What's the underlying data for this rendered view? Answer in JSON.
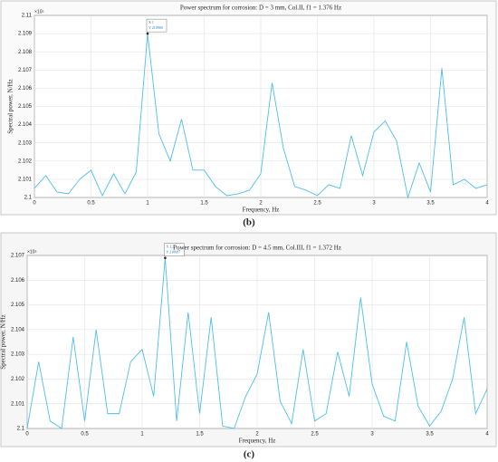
{
  "chart_data": [
    {
      "type": "line",
      "title": "Power spectrum for corrosion: D = 3 mm, Col.II, f1 = 1.376 Hz",
      "x_label": "Frequency, Hz",
      "y_label": "Spectral power, N/Hz",
      "y_exponent": "×10⁵",
      "caption": "(b)",
      "tip": [
        "X 1",
        "Y 210900"
      ],
      "x": [
        0,
        0.1,
        0.2,
        0.3,
        0.4,
        0.5,
        0.6,
        0.7,
        0.8,
        0.9,
        1,
        1.1,
        1.2,
        1.3,
        1.4,
        1.5,
        1.6,
        1.7,
        1.8,
        1.9,
        2,
        2.1,
        2.2,
        2.3,
        2.4,
        2.5,
        2.6,
        2.7,
        2.8,
        2.9,
        3,
        3.1,
        3.2,
        3.3,
        3.4,
        3.5,
        3.6,
        3.7,
        3.8,
        3.9,
        4
      ],
      "values": [
        2.1005,
        2.1012,
        2.1003,
        2.1002,
        2.101,
        2.1015,
        2.1001,
        2.1013,
        2.1002,
        2.1014,
        2.109,
        2.1035,
        2.102,
        2.1043,
        2.1015,
        2.1015,
        2.1006,
        2.1001,
        2.1002,
        2.1004,
        2.1013,
        2.1063,
        2.1027,
        2.1006,
        2.1004,
        2.1001,
        2.1007,
        2.1005,
        2.1034,
        2.1012,
        2.1036,
        2.1042,
        2.1031,
        2.1,
        2.1019,
        2.1003,
        2.1071,
        2.1007,
        2.101,
        2.1005,
        2.1007
      ],
      "color": "#4dbeee",
      "grid": true,
      "xlim": [
        0,
        4
      ],
      "xticks": [
        0,
        0.5,
        1,
        1.5,
        2,
        2.5,
        3,
        3.5,
        4
      ],
      "ylim": [
        2.1,
        2.11
      ],
      "yticks": [
        2.1,
        2.101,
        2.102,
        2.103,
        2.104,
        2.105,
        2.106,
        2.107,
        2.108,
        2.109,
        2.11
      ]
    },
    {
      "type": "line",
      "title": "Power spectrum for corrosion: D = 4.5 mm, Col.III, f1 = 1.372 Hz",
      "x_label": "Frequency, Hz",
      "y_label": "Spectral power, N/Hz",
      "y_exponent": "×10⁵",
      "caption": "(c)",
      "tip": [
        "X 1.2",
        "Y 210687"
      ],
      "x": [
        0,
        0.1,
        0.2,
        0.3,
        0.4,
        0.5,
        0.6,
        0.7,
        0.8,
        0.9,
        1,
        1.1,
        1.2,
        1.3,
        1.4,
        1.5,
        1.6,
        1.7,
        1.8,
        1.9,
        2,
        2.1,
        2.2,
        2.3,
        2.4,
        2.5,
        2.6,
        2.7,
        2.8,
        2.9,
        3,
        3.1,
        3.2,
        3.3,
        3.4,
        3.5,
        3.6,
        3.7,
        3.8,
        3.9,
        4
      ],
      "values": [
        2.1,
        2.1027,
        2.1003,
        2.1,
        2.1037,
        2.1003,
        2.104,
        2.1006,
        2.1006,
        2.1027,
        2.1032,
        2.1013,
        2.1069,
        2.1003,
        2.1047,
        2.1006,
        2.1045,
        2.1001,
        2.1,
        2.1013,
        2.1022,
        2.1047,
        2.1011,
        2.1002,
        2.1032,
        2.1003,
        2.1006,
        2.1031,
        2.1013,
        2.1053,
        2.1018,
        2.1005,
        2.1003,
        2.1035,
        2.1009,
        2.1001,
        2.1007,
        2.102,
        2.1045,
        2.1006,
        2.1016
      ],
      "color": "#4dbeee",
      "grid": true,
      "xlim": [
        0,
        4
      ],
      "xticks": [
        0,
        0.5,
        1,
        1.5,
        2,
        2.5,
        3,
        3.5,
        4
      ],
      "ylim": [
        2.1,
        2.107
      ],
      "yticks": [
        2.1,
        2.101,
        2.102,
        2.103,
        2.104,
        2.105,
        2.106,
        2.107
      ]
    }
  ]
}
